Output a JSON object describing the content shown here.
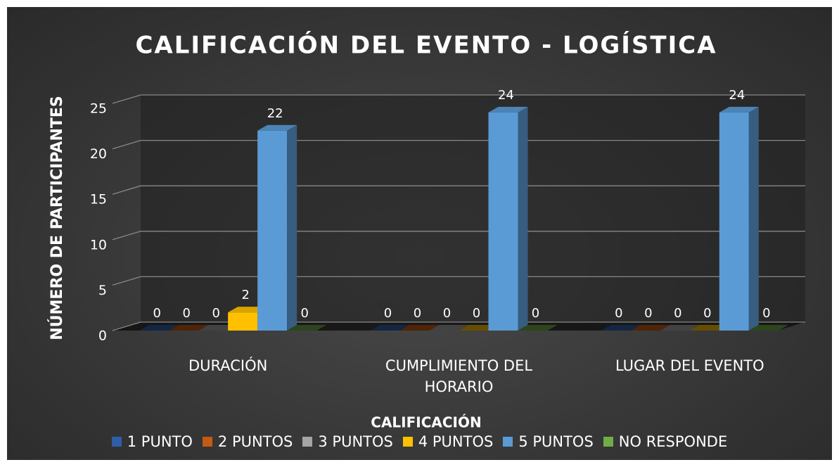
{
  "chart_data": {
    "type": "bar3d",
    "title": "CALIFICACIÓN DEL EVENTO - LOGÍSTICA",
    "x_label": "CALIFICACIÓN",
    "y_label": "NÚMERO DE PARTICIPANTES",
    "categories": [
      "DURACIÓN",
      "CUMPLIMIENTO DEL HORARIO",
      "LUGAR DEL EVENTO"
    ],
    "series": [
      {
        "name": "1 PUNTO",
        "color": "#2f5ea8",
        "values": [
          0,
          0,
          0
        ]
      },
      {
        "name": "2 PUNTOS",
        "color": "#c55a11",
        "values": [
          0,
          0,
          0
        ]
      },
      {
        "name": "3 PUNTOS",
        "color": "#a5a5a5",
        "values": [
          0,
          0,
          0
        ]
      },
      {
        "name": "4 PUNTOS",
        "color": "#ffc000",
        "values": [
          2,
          0,
          0
        ]
      },
      {
        "name": "5 PUNTOS",
        "color": "#5b9bd5",
        "values": [
          22,
          24,
          24
        ]
      },
      {
        "name": "NO RESPONDE",
        "color": "#70ad47",
        "values": [
          0,
          0,
          0
        ]
      }
    ],
    "ylim": [
      0,
      25
    ],
    "yticks": [
      0,
      5,
      10,
      15,
      20,
      25
    ],
    "grid": true,
    "legend": "bottom"
  }
}
